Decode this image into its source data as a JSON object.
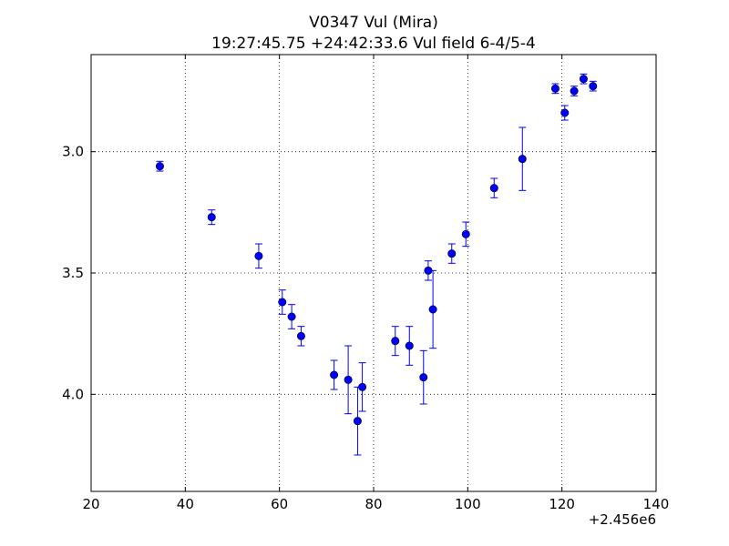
{
  "chart_data": {
    "type": "scatter",
    "title": "V0347 Vul (Mira)",
    "subtitle": "19:27:45.75 +24:42:33.6 Vul field 6-4/5-4",
    "xlabel": "",
    "ylabel": "",
    "x_offset_label": "+2.456e6",
    "xlim": [
      20,
      140
    ],
    "ylim": [
      4.4,
      2.6
    ],
    "y_inverted": true,
    "xticks": [
      20,
      40,
      60,
      80,
      100,
      120,
      140
    ],
    "yticks": [
      3.0,
      3.5,
      4.0
    ],
    "xtick_labels": [
      "20",
      "40",
      "60",
      "80",
      "100",
      "120",
      "140"
    ],
    "ytick_labels": [
      "3.0",
      "3.5",
      "4.0"
    ],
    "grid": true,
    "marker_color": "#0000ff",
    "error_color": "#0000ff",
    "points": [
      {
        "x": 34.6,
        "y": 3.06,
        "err": 0.02
      },
      {
        "x": 45.6,
        "y": 3.27,
        "err": 0.03
      },
      {
        "x": 55.6,
        "y": 3.43,
        "err": 0.05
      },
      {
        "x": 60.6,
        "y": 3.62,
        "err": 0.05
      },
      {
        "x": 62.6,
        "y": 3.68,
        "err": 0.05
      },
      {
        "x": 64.6,
        "y": 3.76,
        "err": 0.04
      },
      {
        "x": 71.6,
        "y": 3.92,
        "err": 0.06
      },
      {
        "x": 74.6,
        "y": 3.94,
        "err": 0.14
      },
      {
        "x": 76.6,
        "y": 4.11,
        "err": 0.14
      },
      {
        "x": 77.6,
        "y": 3.97,
        "err": 0.1
      },
      {
        "x": 84.6,
        "y": 3.78,
        "err": 0.06
      },
      {
        "x": 87.6,
        "y": 3.8,
        "err": 0.08
      },
      {
        "x": 90.6,
        "y": 3.93,
        "err": 0.11
      },
      {
        "x": 91.6,
        "y": 3.49,
        "err": 0.04
      },
      {
        "x": 92.6,
        "y": 3.65,
        "err": 0.16
      },
      {
        "x": 96.6,
        "y": 3.42,
        "err": 0.04
      },
      {
        "x": 99.6,
        "y": 3.34,
        "err": 0.05
      },
      {
        "x": 105.6,
        "y": 3.15,
        "err": 0.04
      },
      {
        "x": 111.6,
        "y": 3.03,
        "err": 0.13
      },
      {
        "x": 118.6,
        "y": 2.74,
        "err": 0.02
      },
      {
        "x": 120.6,
        "y": 2.84,
        "err": 0.03
      },
      {
        "x": 122.6,
        "y": 2.75,
        "err": 0.02
      },
      {
        "x": 124.6,
        "y": 2.7,
        "err": 0.02
      },
      {
        "x": 126.6,
        "y": 2.73,
        "err": 0.02
      }
    ]
  }
}
